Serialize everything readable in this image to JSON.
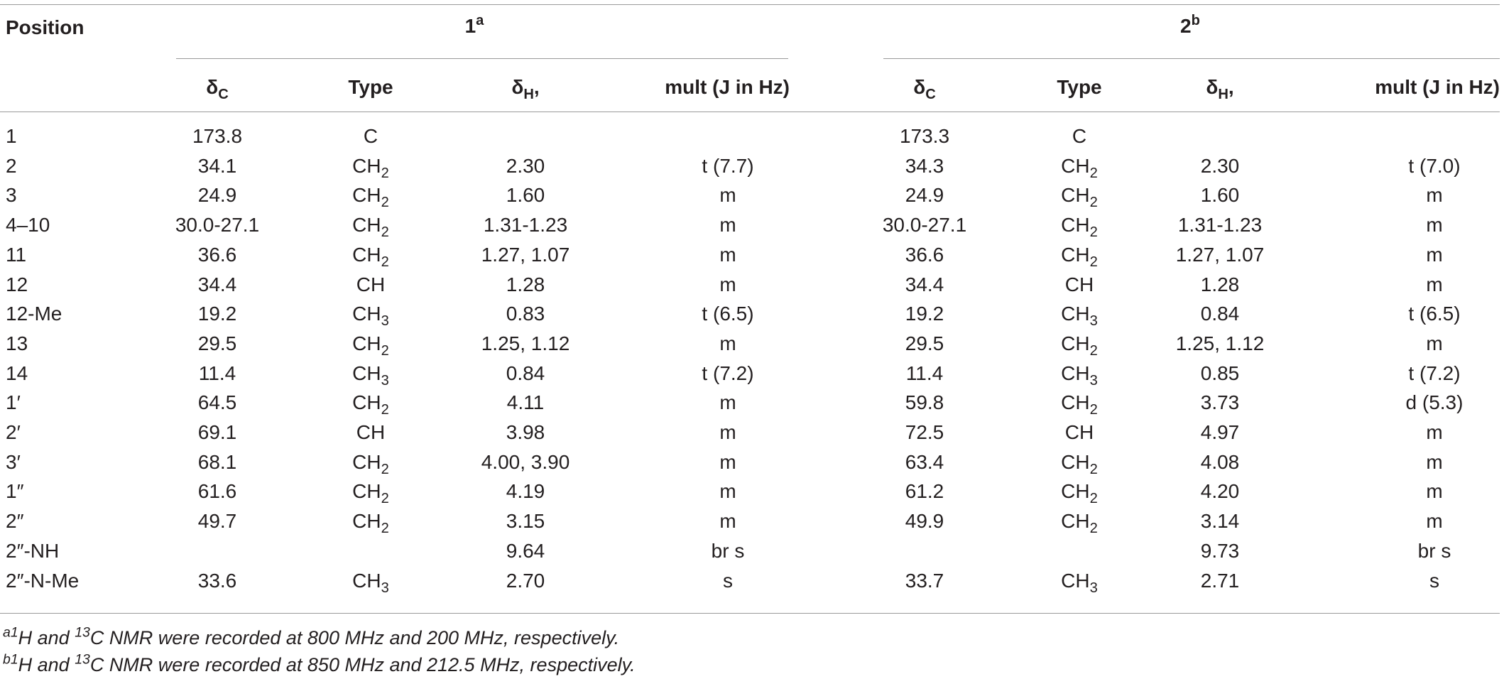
{
  "header": {
    "position": "Position",
    "group1": {
      "label": "1",
      "sup": "a"
    },
    "group2": {
      "label": "2",
      "sup": "b"
    },
    "delta_c": "δ",
    "delta_c_sub": "C",
    "type": "Type",
    "delta_h": "δ",
    "delta_h_sub": "H",
    "delta_h_suffix": ",",
    "mult": "mult (J in Hz)"
  },
  "rows": [
    {
      "pos": "1",
      "c1": "173.8",
      "t1": "C",
      "t1s": "",
      "h1": "",
      "m1": "",
      "c2": "173.3",
      "t2": "C",
      "t2s": "",
      "h2": "",
      "m2": ""
    },
    {
      "pos": "2",
      "c1": "34.1",
      "t1": "CH",
      "t1s": "2",
      "h1": "2.30",
      "m1": "t (7.7)",
      "c2": "34.3",
      "t2": "CH",
      "t2s": "2",
      "h2": "2.30",
      "m2": "t (7.0)"
    },
    {
      "pos": "3",
      "c1": "24.9",
      "t1": "CH",
      "t1s": "2",
      "h1": "1.60",
      "m1": "m",
      "c2": "24.9",
      "t2": "CH",
      "t2s": "2",
      "h2": "1.60",
      "m2": "m"
    },
    {
      "pos": "4–10",
      "c1": "30.0-27.1",
      "t1": "CH",
      "t1s": "2",
      "h1": "1.31-1.23",
      "m1": "m",
      "c2": "30.0-27.1",
      "t2": "CH",
      "t2s": "2",
      "h2": "1.31-1.23",
      "m2": "m"
    },
    {
      "pos": "11",
      "c1": "36.6",
      "t1": "CH",
      "t1s": "2",
      "h1": "1.27, 1.07",
      "m1": "m",
      "c2": "36.6",
      "t2": "CH",
      "t2s": "2",
      "h2": "1.27, 1.07",
      "m2": "m"
    },
    {
      "pos": "12",
      "c1": "34.4",
      "t1": "CH",
      "t1s": "",
      "h1": "1.28",
      "m1": "m",
      "c2": "34.4",
      "t2": "CH",
      "t2s": "",
      "h2": "1.28",
      "m2": "m"
    },
    {
      "pos": "12-Me",
      "c1": "19.2",
      "t1": "CH",
      "t1s": "3",
      "h1": "0.83",
      "m1": "t (6.5)",
      "c2": "19.2",
      "t2": "CH",
      "t2s": "3",
      "h2": "0.84",
      "m2": "t (6.5)"
    },
    {
      "pos": "13",
      "c1": "29.5",
      "t1": "CH",
      "t1s": "2",
      "h1": "1.25, 1.12",
      "m1": "m",
      "c2": "29.5",
      "t2": "CH",
      "t2s": "2",
      "h2": "1.25, 1.12",
      "m2": "m"
    },
    {
      "pos": "14",
      "c1": "11.4",
      "t1": "CH",
      "t1s": "3",
      "h1": "0.84",
      "m1": "t (7.2)",
      "c2": "11.4",
      "t2": "CH",
      "t2s": "3",
      "h2": "0.85",
      "m2": "t (7.2)"
    },
    {
      "pos": "1′",
      "c1": "64.5",
      "t1": "CH",
      "t1s": "2",
      "h1": "4.11",
      "m1": "m",
      "c2": "59.8",
      "t2": "CH",
      "t2s": "2",
      "h2": "3.73",
      "m2": "d (5.3)"
    },
    {
      "pos": "2′",
      "c1": "69.1",
      "t1": "CH",
      "t1s": "",
      "h1": "3.98",
      "m1": "m",
      "c2": "72.5",
      "t2": "CH",
      "t2s": "",
      "h2": "4.97",
      "m2": "m"
    },
    {
      "pos": "3′",
      "c1": "68.1",
      "t1": "CH",
      "t1s": "2",
      "h1": "4.00, 3.90",
      "m1": "m",
      "c2": "63.4",
      "t2": "CH",
      "t2s": "2",
      "h2": "4.08",
      "m2": "m"
    },
    {
      "pos": "1″",
      "c1": "61.6",
      "t1": "CH",
      "t1s": "2",
      "h1": "4.19",
      "m1": "m",
      "c2": "61.2",
      "t2": "CH",
      "t2s": "2",
      "h2": "4.20",
      "m2": "m"
    },
    {
      "pos": "2″",
      "c1": "49.7",
      "t1": "CH",
      "t1s": "2",
      "h1": "3.15",
      "m1": "m",
      "c2": "49.9",
      "t2": "CH",
      "t2s": "2",
      "h2": "3.14",
      "m2": "m"
    },
    {
      "pos": "2″-NH",
      "c1": "",
      "t1": "",
      "t1s": "",
      "h1": "9.64",
      "m1": "br s",
      "c2": "",
      "t2": "",
      "t2s": "",
      "h2": "9.73",
      "m2": "br s"
    },
    {
      "pos": "2″-N-Me",
      "c1": "33.6",
      "t1": "CH",
      "t1s": "3",
      "h1": "2.70",
      "m1": "s",
      "c2": "33.7",
      "t2": "CH",
      "t2s": "3",
      "h2": "2.71",
      "m2": "s"
    }
  ],
  "footnotes": [
    {
      "mark": "a",
      "sup1": "1",
      "t1": "H and ",
      "sup2": "13",
      "t2": "C NMR were recorded at 800 MHz and 200 MHz, respectively."
    },
    {
      "mark": "b",
      "sup1": "1",
      "t1": "H and ",
      "sup2": "13",
      "t2": "C NMR were recorded at 850 MHz and 212.5 MHz, respectively."
    }
  ]
}
